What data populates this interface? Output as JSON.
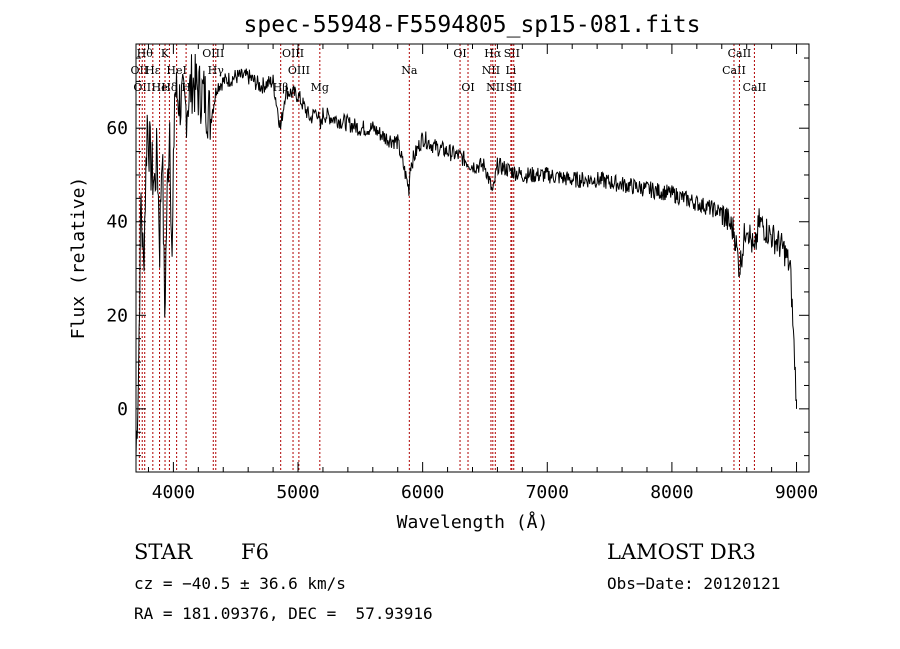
{
  "chart_data": {
    "type": "line",
    "title": "spec-55948-F5594805_sp15-081.fits",
    "xlabel": "Wavelength (Å)",
    "ylabel": "Flux (relative)",
    "xlim": [
      3700,
      9100
    ],
    "ylim": [
      -13.5,
      78
    ],
    "xticks": [
      4000,
      5000,
      6000,
      7000,
      8000,
      9000
    ],
    "yticks": [
      0,
      20,
      40,
      60
    ],
    "series": [
      {
        "name": "spectrum",
        "color": "#000000",
        "x": [
          3700,
          3720,
          3740,
          3760,
          3790,
          3820,
          3850,
          3870,
          3890,
          3910,
          3930,
          3950,
          3970,
          3990,
          4010,
          4050,
          4100,
          4150,
          4200,
          4250,
          4300,
          4350,
          4400,
          4500,
          4600,
          4700,
          4800,
          4860,
          4900,
          5000,
          5100,
          5150,
          5180,
          5200,
          5300,
          5400,
          5500,
          5600,
          5700,
          5800,
          5890,
          5900,
          5950,
          6000,
          6100,
          6200,
          6300,
          6400,
          6500,
          6563,
          6600,
          6700,
          6800,
          6900,
          7000,
          7200,
          7400,
          7600,
          7800,
          8000,
          8100,
          8200,
          8300,
          8400,
          8500,
          8542,
          8600,
          8662,
          8700,
          8800,
          8900,
          8950,
          9000
        ],
        "values": [
          -10,
          8,
          45,
          30,
          62,
          52,
          48,
          55,
          35,
          58,
          20,
          45,
          62,
          30,
          68,
          66,
          64,
          70,
          68,
          67,
          62,
          69,
          70,
          71,
          71,
          69,
          70,
          60,
          68,
          67,
          62,
          64,
          60,
          63,
          62,
          61,
          60,
          60,
          58,
          57,
          47,
          52,
          55,
          58,
          56,
          55,
          54,
          52,
          52,
          46,
          52,
          51,
          50,
          50,
          50,
          49,
          49,
          48,
          47,
          46,
          45,
          44,
          43,
          42,
          38,
          30,
          40,
          33,
          40,
          37,
          34,
          30,
          2
        ]
      }
    ],
    "lines": [
      {
        "wavelength": 3727,
        "label": "OII",
        "row": 2
      },
      {
        "wavelength": 3750,
        "label": "OII",
        "row": 3
      },
      {
        "wavelength": 3770,
        "label": "Hθ",
        "row": 1
      },
      {
        "wavelength": 3835,
        "label": "Hε",
        "row": 2
      },
      {
        "wavelength": 3889,
        "label": "He",
        "row": 3
      },
      {
        "wavelength": 3933,
        "label": "K",
        "row": 1
      },
      {
        "wavelength": 3968,
        "label": "Hδ",
        "row": 3
      },
      {
        "wavelength": 4026,
        "label": "HeI",
        "row": 2
      },
      {
        "wavelength": 4102,
        "label": "H",
        "row": 3
      },
      {
        "wavelength": 4320,
        "label": "OIII",
        "row": 1
      },
      {
        "wavelength": 4340,
        "label": "Hγ",
        "row": 2
      },
      {
        "wavelength": 4861,
        "label": "Hβ",
        "row": 3
      },
      {
        "wavelength": 4960,
        "label": "OIII",
        "row": 1
      },
      {
        "wavelength": 5007,
        "label": "OIII",
        "row": 2
      },
      {
        "wavelength": 5175,
        "label": "Mg",
        "row": 3
      },
      {
        "wavelength": 5893,
        "label": "Na",
        "row": 2
      },
      {
        "wavelength": 6300,
        "label": "OI",
        "row": 1
      },
      {
        "wavelength": 6364,
        "label": "OI",
        "row": 3
      },
      {
        "wavelength": 6548,
        "label": "NII",
        "row": 2
      },
      {
        "wavelength": 6563,
        "label": "Hα",
        "row": 1
      },
      {
        "wavelength": 6583,
        "label": "NII",
        "row": 3
      },
      {
        "wavelength": 6708,
        "label": "Li",
        "row": 2
      },
      {
        "wavelength": 6716,
        "label": "SII",
        "row": 1
      },
      {
        "wavelength": 6731,
        "label": "SII",
        "row": 3
      },
      {
        "wavelength": 8498,
        "label": "CaII",
        "row": 2
      },
      {
        "wavelength": 8542,
        "label": "CaII",
        "row": 1
      },
      {
        "wavelength": 8662,
        "label": "CaII",
        "row": 3
      }
    ]
  },
  "info": {
    "object_class": "STAR",
    "subclass": "F6",
    "survey": "LAMOST DR3",
    "cz": "cz = −40.5 ± 36.6 km/s",
    "obs_date": "Obs−Date: 20120121",
    "coords": "RA = 181.09376, DEC =  57.93916"
  }
}
